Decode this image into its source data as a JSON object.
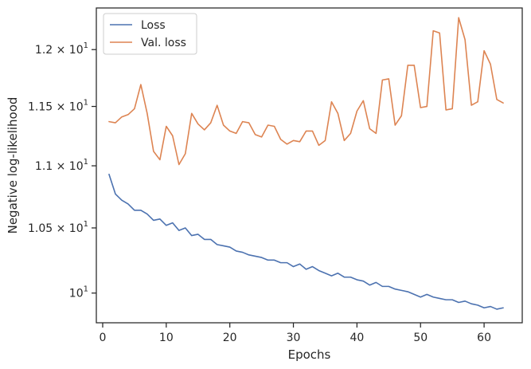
{
  "chart_data": {
    "type": "line",
    "xlabel": "Epochs",
    "ylabel": "Negative log-likelihood",
    "xlim": [
      -1,
      66
    ],
    "ylim": [
      9.78,
      12.38
    ],
    "yscale": "log",
    "grid": false,
    "legend_position": "top-left",
    "x_ticks": [
      0,
      10,
      20,
      30,
      40,
      50,
      60
    ],
    "y_ticks": [
      {
        "value": 10.0,
        "main": "10",
        "exp": "1"
      },
      {
        "value": 10.5,
        "main": "1.05 × 10",
        "exp": "1"
      },
      {
        "value": 11.0,
        "main": "1.1 × 10",
        "exp": "1"
      },
      {
        "value": 11.5,
        "main": "1.15 × 10",
        "exp": "1"
      },
      {
        "value": 12.0,
        "main": "1.2 × 10",
        "exp": "1"
      }
    ],
    "series": [
      {
        "name": "Loss",
        "color": "#4c72b0",
        "x": [
          1,
          2,
          3,
          4,
          5,
          6,
          7,
          8,
          9,
          10,
          11,
          12,
          13,
          14,
          15,
          16,
          17,
          18,
          19,
          20,
          21,
          22,
          23,
          24,
          25,
          26,
          27,
          28,
          29,
          30,
          31,
          32,
          33,
          34,
          35,
          36,
          37,
          38,
          39,
          40,
          41,
          42,
          43,
          44,
          45,
          46,
          47,
          48,
          49,
          50,
          51,
          52,
          53,
          54,
          55,
          56,
          57,
          58,
          59,
          60,
          61,
          62,
          63
        ],
        "values": [
          10.93,
          10.77,
          10.72,
          10.69,
          10.64,
          10.64,
          10.61,
          10.56,
          10.57,
          10.52,
          10.54,
          10.48,
          10.5,
          10.44,
          10.45,
          10.41,
          10.41,
          10.37,
          10.36,
          10.35,
          10.32,
          10.31,
          10.29,
          10.28,
          10.27,
          10.25,
          10.25,
          10.23,
          10.23,
          10.2,
          10.22,
          10.18,
          10.2,
          10.17,
          10.15,
          10.13,
          10.15,
          10.12,
          10.12,
          10.1,
          10.09,
          10.06,
          10.08,
          10.05,
          10.05,
          10.03,
          10.02,
          10.01,
          9.99,
          9.97,
          9.99,
          9.97,
          9.96,
          9.95,
          9.95,
          9.93,
          9.94,
          9.92,
          9.91,
          9.89,
          9.9,
          9.88,
          9.89
        ]
      },
      {
        "name": "Val. loss",
        "color": "#dd8452",
        "x": [
          1,
          2,
          3,
          4,
          5,
          6,
          7,
          8,
          9,
          10,
          11,
          12,
          13,
          14,
          15,
          16,
          17,
          18,
          19,
          20,
          21,
          22,
          23,
          24,
          25,
          26,
          27,
          28,
          29,
          30,
          31,
          32,
          33,
          34,
          35,
          36,
          37,
          38,
          39,
          40,
          41,
          42,
          43,
          44,
          45,
          46,
          47,
          48,
          49,
          50,
          51,
          52,
          53,
          54,
          55,
          56,
          57,
          58,
          59,
          60,
          61,
          62,
          63
        ],
        "values": [
          11.37,
          11.36,
          11.41,
          11.43,
          11.48,
          11.69,
          11.44,
          11.12,
          11.05,
          11.33,
          11.25,
          11.01,
          11.1,
          11.44,
          11.35,
          11.3,
          11.36,
          11.51,
          11.34,
          11.29,
          11.27,
          11.37,
          11.36,
          11.26,
          11.24,
          11.34,
          11.33,
          11.22,
          11.18,
          11.21,
          11.2,
          11.29,
          11.29,
          11.17,
          11.21,
          11.54,
          11.44,
          11.21,
          11.27,
          11.46,
          11.55,
          11.31,
          11.27,
          11.73,
          11.74,
          11.34,
          11.42,
          11.86,
          11.86,
          11.49,
          11.5,
          12.17,
          12.15,
          11.47,
          11.48,
          12.29,
          12.09,
          11.51,
          11.54,
          11.99,
          11.87,
          11.56,
          11.53
        ]
      }
    ]
  }
}
